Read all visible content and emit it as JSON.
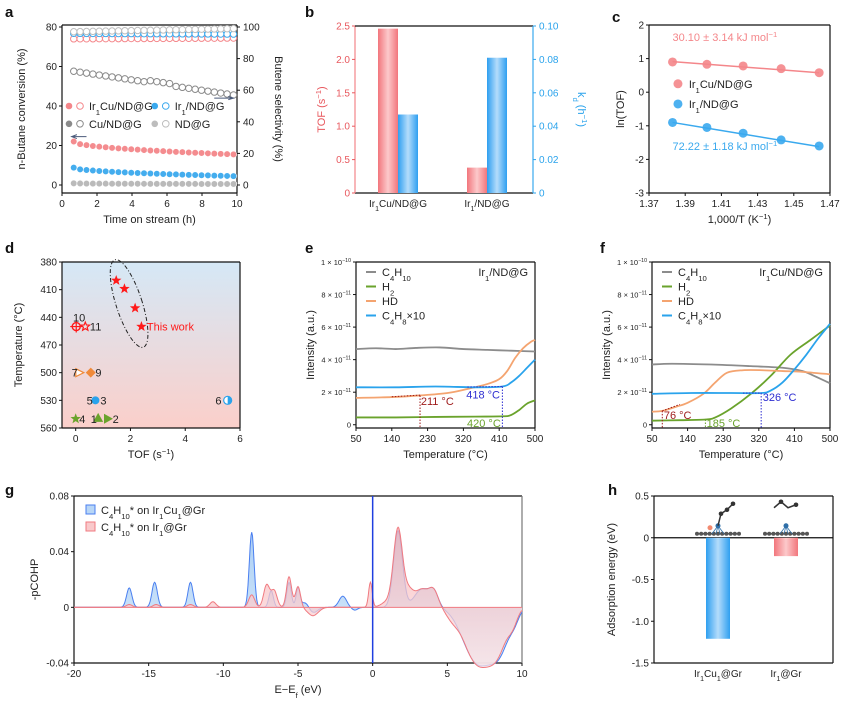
{
  "panels": {
    "a": "a",
    "b": "b",
    "c": "c",
    "d": "d",
    "e": "e",
    "f": "f",
    "g": "g",
    "h": "h"
  },
  "chart_data": [
    {
      "id": "a",
      "type": "scatter",
      "xlabel": "Time on stream (h)",
      "ylabel": "n-Butane conversion (%)",
      "y2label": "Butene selectivity (%)",
      "xlim": [
        0,
        10
      ],
      "ylim": [
        0,
        80
      ],
      "y2lim": [
        0,
        100
      ],
      "xticks": [
        "0",
        "2",
        "4",
        "6",
        "8",
        "10"
      ],
      "yticks": [
        "0",
        "20",
        "40",
        "60",
        "80"
      ],
      "y2ticks": [
        "0",
        "20",
        "40",
        "60",
        "80",
        "100"
      ],
      "legend": [
        {
          "name": "Ir1Cu/ND@G",
          "color": "#f4868a"
        },
        {
          "name": "Ir1/ND@G",
          "color": "#3aa9ee"
        },
        {
          "name": "Cu/ND@G",
          "color": "#8a8a8a"
        },
        {
          "name": "ND@G",
          "color": "#bdbdbd"
        }
      ],
      "conversion_series": [
        {
          "name": "Ir1Cu/ND@G",
          "start": 22,
          "end": 15.5
        },
        {
          "name": "Ir1/ND@G",
          "start": 8.8,
          "end": 4.5
        },
        {
          "name": "Cu/ND@G",
          "start": 1.0,
          "end": 0.6
        },
        {
          "name": "ND@G",
          "start": 0.8,
          "end": 0.5
        }
      ],
      "selectivity_series": [
        {
          "name": "Ir1Cu/ND@G",
          "start": 92.5,
          "end": 93
        },
        {
          "name": "Ir1/ND@G",
          "start": 96,
          "end": 95.5
        },
        {
          "name": "Cu/ND@G",
          "start": 72,
          "end": 57
        },
        {
          "name": "ND@G",
          "start": 97,
          "end": 99
        }
      ],
      "x_start": 0.67,
      "x_end": 9.8,
      "n_points": 26
    },
    {
      "id": "b",
      "type": "bar",
      "categories": [
        "Ir1Cu/ND@G",
        "Ir1/ND@G"
      ],
      "series": [
        {
          "name": "TOF (s-1)",
          "axis": "left",
          "color": "#f4868a",
          "values": [
            2.46,
            0.38
          ]
        },
        {
          "name": "kd (h-1)",
          "axis": "right",
          "color": "#3aa9ee",
          "values": [
            0.047,
            0.081
          ]
        }
      ],
      "ylabel": "TOF (s⁻¹)",
      "y2label": "kd (h⁻¹)",
      "ylim": [
        0,
        2.5
      ],
      "y2lim": [
        0,
        0.1
      ],
      "yticks": [
        "0",
        "0.5",
        "1.0",
        "1.5",
        "2.0",
        "2.5"
      ],
      "y2ticks": [
        "0",
        "0.02",
        "0.04",
        "0.06",
        "0.08",
        "0.10"
      ]
    },
    {
      "id": "c",
      "type": "line",
      "xlabel": "1,000/T (K⁻¹)",
      "ylabel": "ln(TOF)",
      "xlim": [
        1.37,
        1.47
      ],
      "ylim": [
        -3,
        2
      ],
      "xticks": [
        "1.37",
        "1.39",
        "1.41",
        "1.43",
        "1.45",
        "1.47"
      ],
      "yticks": [
        "-3",
        "-2",
        "-1",
        "0",
        "1",
        "2"
      ],
      "x": [
        1.383,
        1.402,
        1.422,
        1.443,
        1.464
      ],
      "series": [
        {
          "name": "Ir1Cu/ND@G",
          "color": "#f4868a",
          "values": [
            0.9,
            0.83,
            0.78,
            0.7,
            0.58
          ],
          "fit": [
            0.91,
            0.58
          ],
          "annotation": "30.10 ± 3.14 kJ mol⁻¹"
        },
        {
          "name": "Ir1/ND@G",
          "color": "#3aa9ee",
          "values": [
            -0.9,
            -1.05,
            -1.22,
            -1.42,
            -1.6
          ],
          "fit": [
            -0.9,
            -1.62
          ],
          "annotation": "72.22 ± 1.18 kJ mol⁻¹"
        }
      ]
    },
    {
      "id": "d",
      "type": "scatter",
      "xlabel": "TOF (s⁻¹)",
      "ylabel": "Temperature (°C)",
      "xlim": [
        -0.5,
        6
      ],
      "ylim": [
        560,
        380
      ],
      "xticks": [
        "0",
        "2",
        "4",
        "6"
      ],
      "yticks": [
        "380",
        "410",
        "440",
        "470",
        "500",
        "530",
        "560"
      ],
      "points": [
        {
          "label": "This work",
          "x": 1.48,
          "y": 400,
          "marker": "star",
          "color": "#ff1a1a"
        },
        {
          "label": "",
          "x": 1.78,
          "y": 409,
          "marker": "star",
          "color": "#ff1a1a"
        },
        {
          "label": "",
          "x": 2.17,
          "y": 430,
          "marker": "star",
          "color": "#ff1a1a"
        },
        {
          "label": "",
          "x": 2.4,
          "y": 450,
          "marker": "star",
          "color": "#ff1a1a"
        },
        {
          "label": "10",
          "x": 0.02,
          "y": 450,
          "marker": "crosshair-circle",
          "color": "#ff1a1a"
        },
        {
          "label": "11",
          "x": 0.35,
          "y": 450,
          "marker": "open-star",
          "color": "#ff1a1a"
        },
        {
          "label": "7",
          "x": 0.15,
          "y": 500,
          "marker": "open-triangle-right",
          "color": "#f08a3a"
        },
        {
          "label": "9",
          "x": 0.55,
          "y": 500,
          "marker": "diamond",
          "color": "#f08a3a"
        },
        {
          "label": "5",
          "x": 0.72,
          "y": 530,
          "marker": "circle",
          "color": "#2aa3ec"
        },
        {
          "label": "3",
          "x": 0.72,
          "y": 530,
          "marker": "circle",
          "color": "#2aa3ec"
        },
        {
          "label": "6",
          "x": 5.55,
          "y": 530,
          "marker": "half-circle",
          "color": "#2aa3ec"
        },
        {
          "label": "4",
          "x": 0.0,
          "y": 550,
          "marker": "star",
          "color": "#6aa32c"
        },
        {
          "label": "1",
          "x": 0.82,
          "y": 549,
          "marker": "triangle-up",
          "color": "#6aa32c"
        },
        {
          "label": "2",
          "x": 1.18,
          "y": 550,
          "marker": "triangle-right",
          "color": "#6aa32c"
        }
      ],
      "annotation": "This work"
    },
    {
      "id": "e",
      "type": "line",
      "title": "Ir1/ND@G",
      "xlabel": "Temperature (°C)",
      "ylabel": "Intensity (a.u.)",
      "xlim": [
        50,
        500
      ],
      "ylim": [
        -2e-12,
        1e-10
      ],
      "xticks": [
        "50",
        "140",
        "230",
        "320",
        "410",
        "500"
      ],
      "yticks": [
        "0",
        "2 × 10⁻¹¹",
        "4 × 10⁻¹¹",
        "6 × 10⁻¹¹",
        "8 × 10⁻¹¹",
        "1 × 10⁻¹⁰"
      ],
      "series": [
        {
          "name": "C4H10",
          "color": "#8c8c8c",
          "x": [
            50,
            100,
            150,
            200,
            260,
            320,
            380,
            440,
            500
          ],
          "y": [
            4.65,
            4.7,
            4.65,
            4.72,
            4.75,
            4.65,
            4.6,
            4.55,
            4.5
          ]
        },
        {
          "name": "H2",
          "color": "#6aa32c",
          "x": [
            50,
            150,
            250,
            350,
            420,
            440,
            460,
            480,
            500
          ],
          "y": [
            0.45,
            0.45,
            0.48,
            0.5,
            0.52,
            0.6,
            0.9,
            1.3,
            1.5
          ]
        },
        {
          "name": "HD",
          "color": "#f4a470",
          "x": [
            50,
            140,
            211,
            280,
            330,
            380,
            410,
            430,
            450,
            470,
            490,
            500
          ],
          "y": [
            1.65,
            1.7,
            1.8,
            1.95,
            2.2,
            2.5,
            2.8,
            3.3,
            4.1,
            4.7,
            5.1,
            5.2
          ]
        },
        {
          "name": "C4H8×10",
          "color": "#2aa3ec",
          "x": [
            50,
            150,
            250,
            350,
            418,
            440,
            460,
            480,
            500
          ],
          "y": [
            2.3,
            2.3,
            2.35,
            2.3,
            2.35,
            2.6,
            3.0,
            3.5,
            4.0
          ]
        }
      ],
      "annotations": [
        {
          "text": "211 °C",
          "x": 211,
          "color": "#9e1a1a"
        },
        {
          "text": "418 °C",
          "x": 418,
          "color": "#2e2ed1"
        },
        {
          "text": "420 °C",
          "x": 420,
          "color": "#6aa32c"
        }
      ]
    },
    {
      "id": "f",
      "type": "line",
      "title": "Ir1Cu/ND@G",
      "xlabel": "Temperature (°C)",
      "ylabel": "Intensity (a.u.)",
      "xlim": [
        50,
        500
      ],
      "ylim": [
        -2e-12,
        1e-10
      ],
      "xticks": [
        "50",
        "140",
        "230",
        "320",
        "410",
        "500"
      ],
      "yticks": [
        "0",
        "2 × 10⁻¹¹",
        "4 × 10⁻¹¹",
        "6 × 10⁻¹¹",
        "8 × 10⁻¹¹",
        "1 × 10⁻¹⁰"
      ],
      "series": [
        {
          "name": "C4H10",
          "color": "#8c8c8c",
          "x": [
            50,
            100,
            200,
            300,
            380,
            430,
            460,
            500
          ],
          "y": [
            3.7,
            3.75,
            3.7,
            3.6,
            3.5,
            3.3,
            3.0,
            2.55
          ]
        },
        {
          "name": "H2",
          "color": "#6aa32c",
          "x": [
            50,
            120,
            185,
            210,
            250,
            300,
            350,
            400,
            450,
            500
          ],
          "y": [
            0.25,
            0.28,
            0.32,
            0.45,
            1.0,
            1.9,
            3.0,
            4.3,
            5.2,
            6.1
          ]
        },
        {
          "name": "HD",
          "color": "#f4a470",
          "x": [
            50,
            76,
            110,
            140,
            180,
            210,
            240,
            280,
            330,
            380,
            430,
            500
          ],
          "y": [
            0.8,
            0.85,
            1.1,
            1.35,
            1.9,
            2.6,
            3.2,
            3.35,
            3.35,
            3.3,
            3.25,
            3.1
          ]
        },
        {
          "name": "C4H8×10",
          "color": "#2aa3ec",
          "x": [
            50,
            150,
            250,
            326,
            350,
            380,
            410,
            440,
            470,
            500
          ],
          "y": [
            1.9,
            1.95,
            1.95,
            1.95,
            2.1,
            2.6,
            3.4,
            4.3,
            5.3,
            6.2
          ]
        }
      ],
      "annotations": [
        {
          "text": "76 °C",
          "x": 76,
          "color": "#9e1a1a"
        },
        {
          "text": "185 °C",
          "x": 185,
          "color": "#6aa32c"
        },
        {
          "text": "326 °C",
          "x": 326,
          "color": "#2e2ed1"
        }
      ]
    },
    {
      "id": "g",
      "type": "area",
      "xlabel": "E−Ef (eV)",
      "ylabel": "-pCOHP",
      "xlim": [
        -20,
        10
      ],
      "ylim": [
        -0.04,
        0.08
      ],
      "xticks": [
        "-20",
        "-15",
        "-10",
        "-5",
        "0",
        "5",
        "10"
      ],
      "yticks": [
        "-0.04",
        "0",
        "0.04",
        "0.08"
      ],
      "fermi_line_x": 0,
      "series": [
        {
          "name": "C4H10* on Ir1Cu1@Gr",
          "color": "#4a7ff0",
          "fill": "#aacdf5",
          "peaks": [
            [
              -16.3,
              0.014,
              0.18
            ],
            [
              -14.6,
              0.018,
              0.18
            ],
            [
              -12.2,
              0.018,
              0.17
            ],
            [
              -8.1,
              0.054,
              0.16
            ],
            [
              -6.8,
              0.012,
              0.15
            ],
            [
              -5.6,
              0.018,
              0.15
            ],
            [
              -5.0,
              0.014,
              0.13
            ],
            [
              -4.5,
              0.004,
              0.25
            ],
            [
              -4.0,
              -0.004,
              0.3
            ],
            [
              -2.0,
              0.008,
              0.25
            ],
            [
              -1.2,
              -0.002,
              0.2
            ],
            [
              1.7,
              0.055,
              0.3
            ],
            [
              3.3,
              0.013,
              0.5
            ],
            [
              4.1,
              0.01,
              0.3
            ],
            [
              6.5,
              -0.018,
              0.8
            ],
            [
              7.5,
              -0.03,
              0.9
            ],
            [
              8.6,
              -0.02,
              0.6
            ],
            [
              9.5,
              -0.006,
              0.3
            ]
          ]
        },
        {
          "name": "C4H10* on Ir1@Gr",
          "color": "#f07a80",
          "fill": "#f9c3c5",
          "peaks": [
            [
              -16.3,
              0.002,
              0.2
            ],
            [
              -14.5,
              0.002,
              0.2
            ],
            [
              -12.2,
              0.002,
              0.2
            ],
            [
              -10.7,
              0.004,
              0.2
            ],
            [
              -8.1,
              0.009,
              0.2
            ],
            [
              -7.1,
              0.016,
              0.2
            ],
            [
              -6.6,
              0.012,
              0.2
            ],
            [
              -5.6,
              0.022,
              0.17
            ],
            [
              -5.0,
              0.015,
              0.17
            ],
            [
              -4.0,
              -0.006,
              0.35
            ],
            [
              -0.15,
              0.018,
              0.12
            ],
            [
              1.0,
              0.004,
              0.4
            ],
            [
              1.7,
              0.056,
              0.3
            ],
            [
              2.4,
              0.01,
              0.3
            ],
            [
              3.3,
              0.013,
              0.5
            ],
            [
              4.1,
              0.01,
              0.3
            ],
            [
              5.3,
              -0.006,
              0.4
            ],
            [
              6.5,
              -0.02,
              0.7
            ],
            [
              7.5,
              -0.031,
              0.8
            ],
            [
              8.5,
              -0.02,
              0.6
            ],
            [
              9.4,
              -0.008,
              0.3
            ]
          ]
        }
      ]
    },
    {
      "id": "h",
      "type": "bar",
      "categories": [
        "Ir1Cu1@Gr",
        "Ir1@Gr"
      ],
      "values": [
        -1.21,
        -0.22
      ],
      "colors": [
        "#3aa9ee",
        "#f4868a"
      ],
      "ylabel": "Adsorption energy (eV)",
      "ylim": [
        -1.5,
        0.5
      ],
      "yticks": [
        "-1.5",
        "-1.0",
        "-0.5",
        "0",
        "0.5"
      ]
    }
  ]
}
